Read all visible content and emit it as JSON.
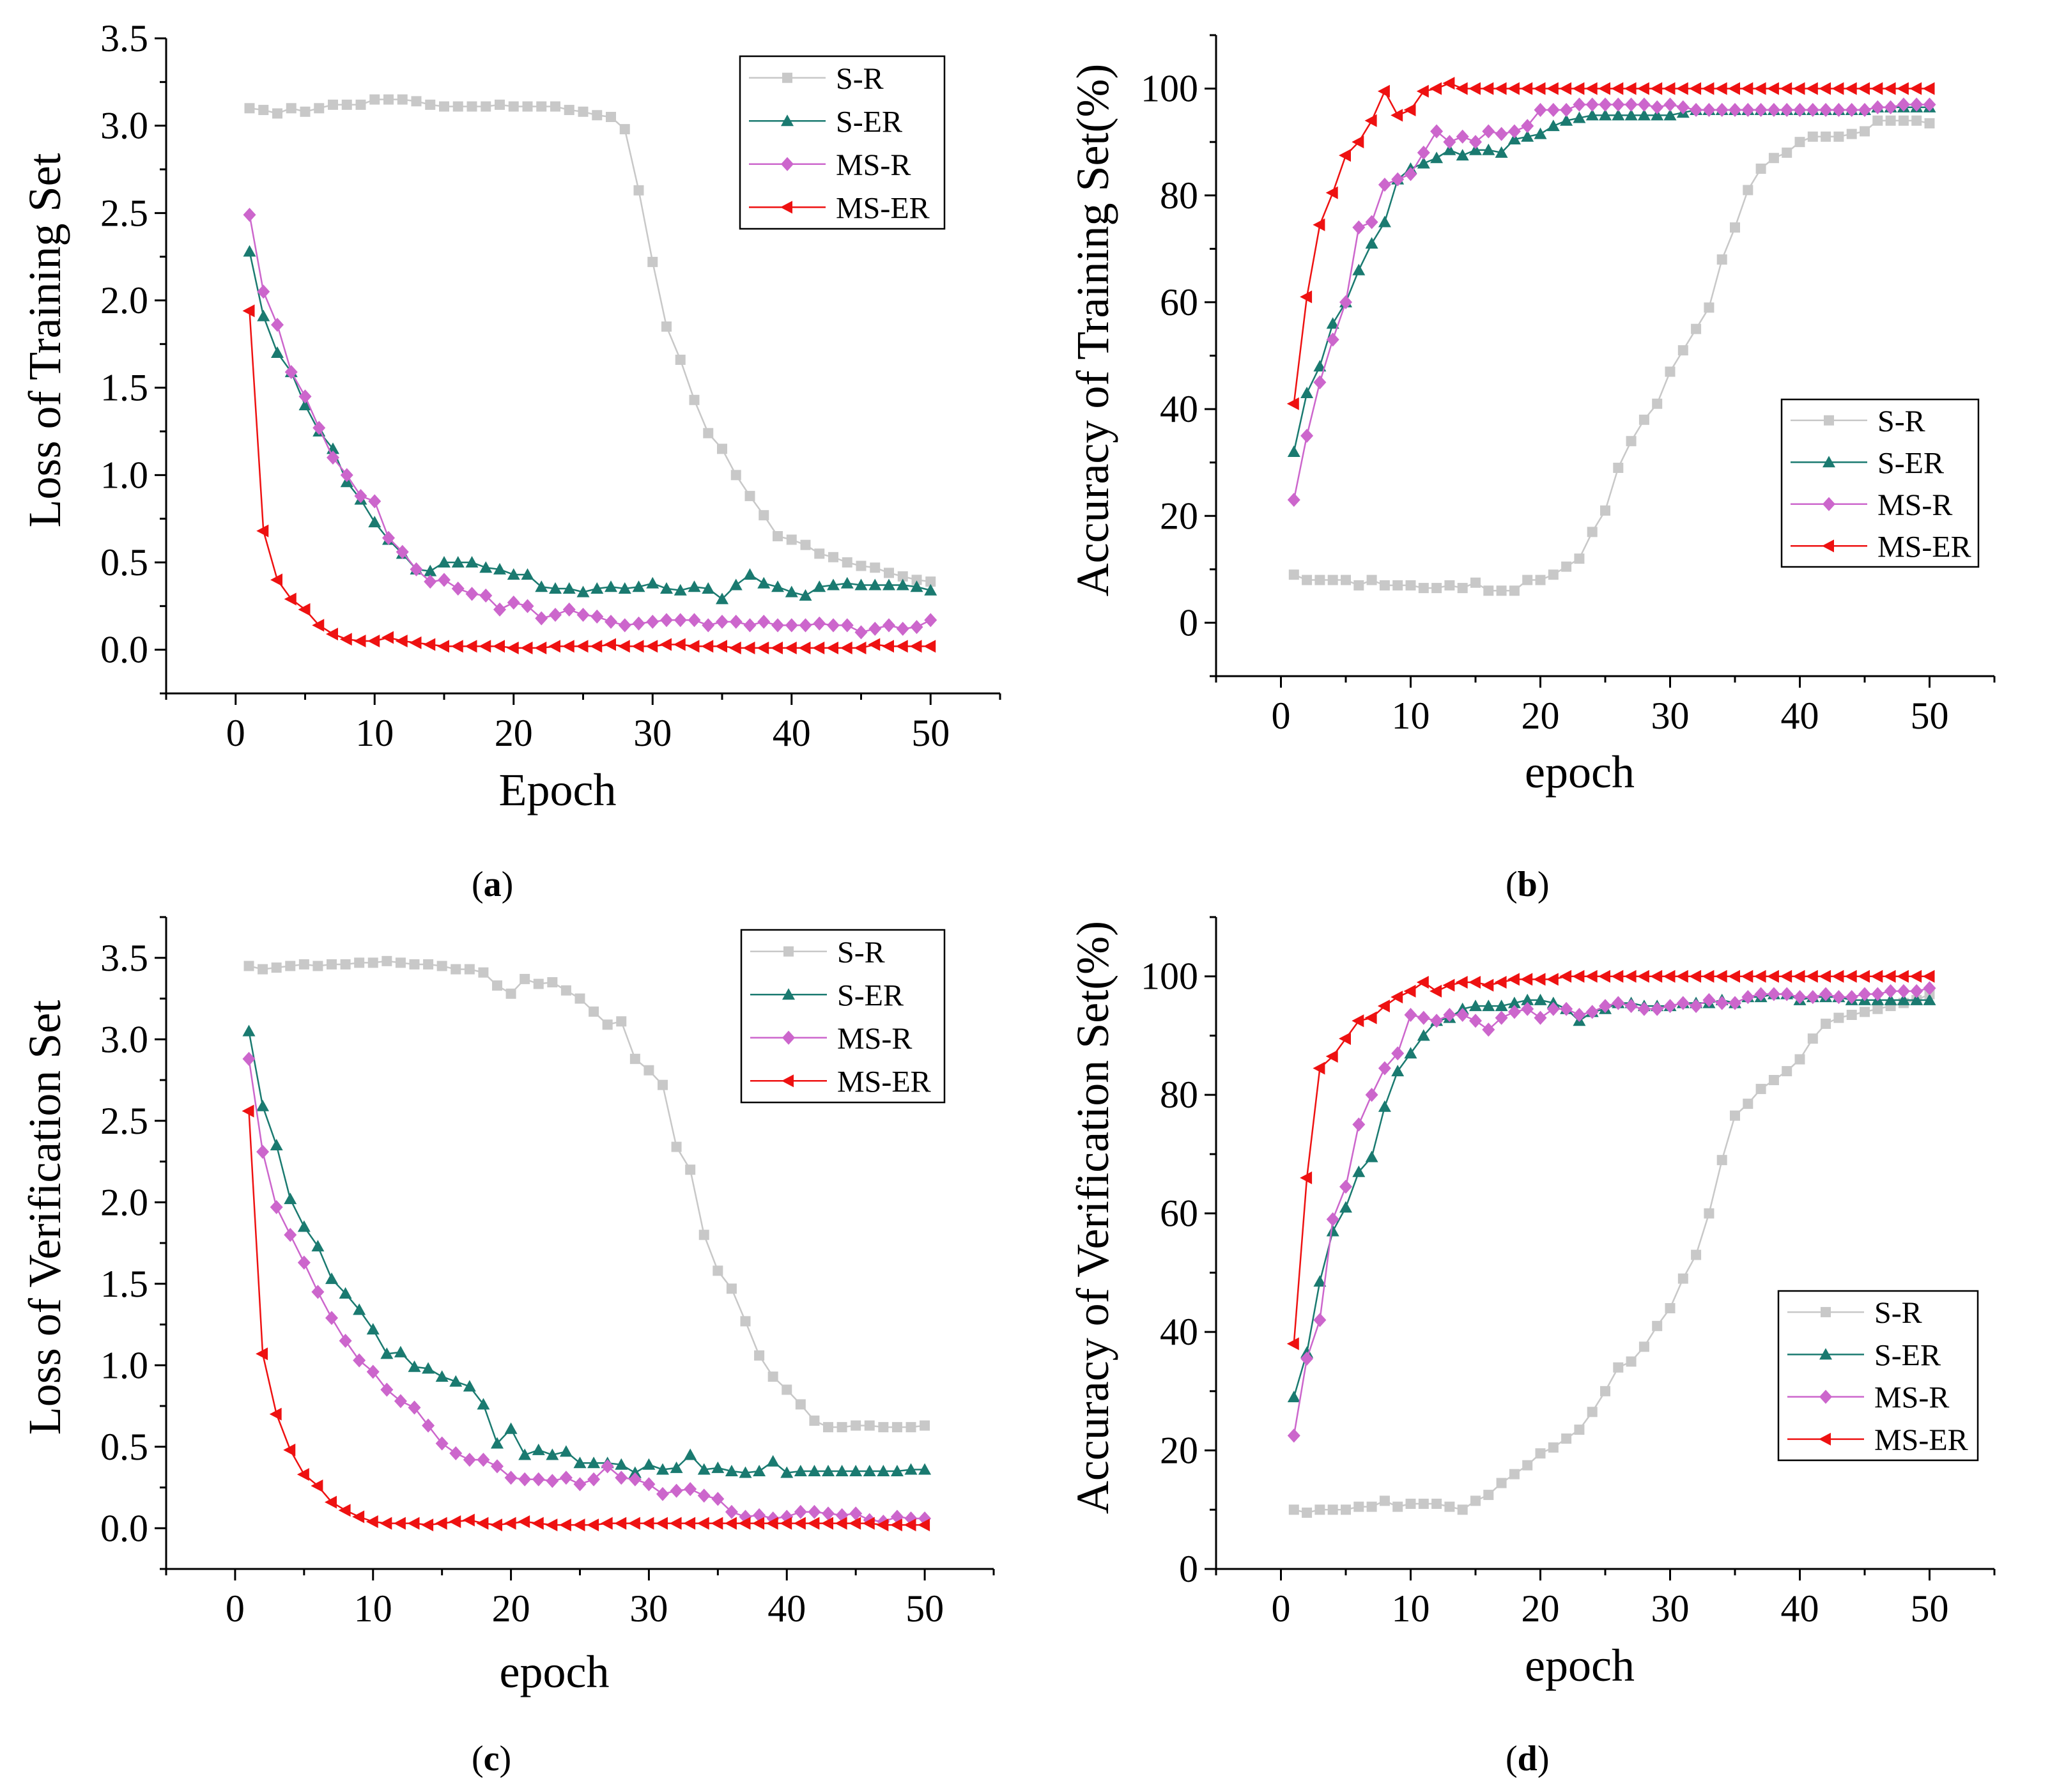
{
  "figure": {
    "captions": [
      {
        "open": "(",
        "letter": "a",
        "close": ")"
      },
      {
        "open": "(",
        "letter": "b",
        "close": ")"
      },
      {
        "open": "(",
        "letter": "c",
        "close": ")"
      },
      {
        "open": "(",
        "letter": "d",
        "close": ")"
      }
    ]
  },
  "chart_data": [
    {
      "id": "a",
      "type": "line",
      "title": "",
      "xlabel": "Epoch",
      "ylabel": "Loss of Training Set",
      "xlim": [
        -5,
        55
      ],
      "ylim": [
        -0.25,
        3.5
      ],
      "xticks": [
        0,
        10,
        20,
        30,
        40,
        50
      ],
      "yticks": [
        0.0,
        0.5,
        1.0,
        1.5,
        2.0,
        2.5,
        3.0,
        3.5
      ],
      "ytick_labels": [
        "0.0",
        "0.5",
        "1.0",
        "1.5",
        "2.0",
        "2.5",
        "3.0",
        "3.5"
      ],
      "legend": "top-right",
      "series": [
        {
          "name": "S-R",
          "color": "#c8c8c8",
          "marker": "square",
          "values": [
            3.1,
            3.09,
            3.07,
            3.1,
            3.08,
            3.1,
            3.12,
            3.12,
            3.12,
            3.15,
            3.15,
            3.15,
            3.14,
            3.12,
            3.11,
            3.11,
            3.11,
            3.11,
            3.12,
            3.11,
            3.11,
            3.11,
            3.11,
            3.09,
            3.08,
            3.06,
            3.05,
            2.98,
            2.63,
            2.22,
            1.85,
            1.66,
            1.43,
            1.24,
            1.15,
            1.0,
            0.88,
            0.77,
            0.65,
            0.63,
            0.6,
            0.55,
            0.53,
            0.5,
            0.48,
            0.47,
            0.44,
            0.42,
            0.4,
            0.39
          ]
        },
        {
          "name": "S-ER",
          "color": "#1a7a70",
          "marker": "triangle-up",
          "values": [
            2.28,
            1.91,
            1.7,
            1.59,
            1.4,
            1.25,
            1.15,
            0.96,
            0.86,
            0.73,
            0.63,
            0.55,
            0.46,
            0.45,
            0.5,
            0.5,
            0.5,
            0.47,
            0.46,
            0.43,
            0.43,
            0.36,
            0.35,
            0.35,
            0.33,
            0.35,
            0.36,
            0.35,
            0.36,
            0.38,
            0.35,
            0.34,
            0.36,
            0.35,
            0.29,
            0.37,
            0.43,
            0.38,
            0.36,
            0.33,
            0.31,
            0.36,
            0.37,
            0.38,
            0.37,
            0.37,
            0.37,
            0.37,
            0.36,
            0.34
          ]
        },
        {
          "name": "MS-R",
          "color": "#cc66cc",
          "marker": "diamond",
          "values": [
            2.49,
            2.05,
            1.86,
            1.59,
            1.45,
            1.27,
            1.1,
            1.0,
            0.88,
            0.85,
            0.64,
            0.56,
            0.46,
            0.39,
            0.4,
            0.35,
            0.32,
            0.31,
            0.23,
            0.27,
            0.25,
            0.18,
            0.2,
            0.23,
            0.2,
            0.19,
            0.16,
            0.14,
            0.15,
            0.16,
            0.17,
            0.17,
            0.17,
            0.14,
            0.16,
            0.16,
            0.14,
            0.16,
            0.14,
            0.14,
            0.14,
            0.15,
            0.14,
            0.14,
            0.1,
            0.12,
            0.14,
            0.12,
            0.13,
            0.17
          ]
        },
        {
          "name": "MS-ER",
          "color": "#ee1111",
          "marker": "triangle-left",
          "values": [
            1.94,
            0.68,
            0.4,
            0.29,
            0.23,
            0.14,
            0.09,
            0.06,
            0.05,
            0.05,
            0.07,
            0.05,
            0.04,
            0.03,
            0.02,
            0.02,
            0.02,
            0.02,
            0.02,
            0.01,
            0.01,
            0.01,
            0.02,
            0.02,
            0.02,
            0.02,
            0.03,
            0.02,
            0.02,
            0.02,
            0.03,
            0.03,
            0.02,
            0.02,
            0.02,
            0.01,
            0.01,
            0.01,
            0.01,
            0.01,
            0.01,
            0.01,
            0.01,
            0.01,
            0.01,
            0.03,
            0.02,
            0.02,
            0.02,
            0.02
          ]
        }
      ]
    },
    {
      "id": "b",
      "type": "line",
      "title": "",
      "xlabel": "epoch",
      "ylabel": "Accuracy of Training Set(%)",
      "xlim": [
        -5,
        55
      ],
      "ylim": [
        -10,
        110
      ],
      "xticks": [
        0,
        10,
        20,
        30,
        40,
        50
      ],
      "yticks": [
        0,
        20,
        40,
        60,
        80,
        100
      ],
      "ytick_labels": [
        "0",
        "20",
        "40",
        "60",
        "80",
        "100"
      ],
      "legend": "middle-right",
      "series": [
        {
          "name": "S-R",
          "color": "#c8c8c8",
          "marker": "square",
          "values": [
            9.0,
            8.0,
            8.0,
            8.0,
            8.0,
            7.0,
            8.0,
            7.0,
            7.0,
            7.0,
            6.5,
            6.5,
            7.0,
            6.5,
            7.5,
            6.0,
            6.0,
            6.0,
            8.0,
            8.0,
            9.0,
            10.5,
            12.0,
            17.0,
            21.0,
            29.0,
            34.0,
            38.0,
            41.0,
            47.0,
            51.0,
            55.0,
            59.0,
            68.0,
            74.0,
            81.0,
            85.0,
            87.0,
            88.0,
            90.0,
            91.0,
            91.0,
            91.0,
            91.5,
            92.0,
            94.0,
            94.0,
            94.0,
            94.0,
            93.5
          ]
        },
        {
          "name": "S-ER",
          "color": "#1a7a70",
          "marker": "triangle-up",
          "values": [
            32.0,
            43.0,
            48.0,
            56.0,
            60.0,
            66.0,
            71.0,
            75.0,
            83.0,
            85.0,
            86.0,
            87.0,
            88.5,
            87.5,
            88.5,
            88.5,
            88.0,
            90.5,
            91.0,
            91.5,
            93.0,
            94.0,
            94.5,
            95.0,
            95.0,
            95.0,
            95.0,
            95.0,
            95.0,
            95.0,
            95.5,
            96.0,
            96.0,
            96.0,
            96.0,
            96.0,
            96.0,
            96.0,
            96.0,
            96.0,
            96.0,
            96.0,
            96.0,
            96.0,
            96.0,
            96.5,
            96.5,
            96.5,
            96.5,
            96.5
          ]
        },
        {
          "name": "MS-R",
          "color": "#cc66cc",
          "marker": "diamond",
          "values": [
            23.0,
            35.0,
            45.0,
            53.0,
            60.0,
            74.0,
            75.0,
            82.0,
            83.0,
            84.0,
            88.0,
            92.0,
            90.0,
            91.0,
            90.0,
            92.0,
            91.5,
            92.0,
            93.0,
            96.0,
            96.0,
            96.0,
            97.0,
            97.0,
            97.0,
            97.0,
            97.0,
            97.0,
            96.5,
            97.0,
            96.5,
            96.0,
            96.0,
            96.0,
            96.0,
            96.0,
            96.0,
            96.0,
            96.0,
            96.0,
            96.0,
            96.0,
            96.0,
            96.0,
            96.0,
            96.5,
            96.5,
            97.0,
            97.0,
            97.0
          ]
        },
        {
          "name": "MS-ER",
          "color": "#ee1111",
          "marker": "triangle-left",
          "values": [
            41.0,
            61.0,
            74.5,
            80.5,
            87.5,
            90.0,
            94.0,
            99.5,
            95.0,
            96.0,
            99.5,
            100.0,
            101.0,
            100.0,
            100.0,
            100.0,
            100.0,
            100.0,
            100.0,
            100.0,
            100.0,
            100.0,
            100.0,
            100.0,
            100.0,
            100.0,
            100.0,
            100.0,
            100.0,
            100.0,
            100.0,
            100.0,
            100.0,
            100.0,
            100.0,
            100.0,
            100.0,
            100.0,
            100.0,
            100.0,
            100.0,
            100.0,
            100.0,
            100.0,
            100.0,
            100.0,
            100.0,
            100.0,
            100.0,
            100.0
          ]
        }
      ]
    },
    {
      "id": "c",
      "type": "line",
      "title": "",
      "xlabel": "epoch",
      "ylabel": "Loss of Verification Set",
      "xlim": [
        -5,
        55
      ],
      "ylim": [
        -0.25,
        3.75
      ],
      "xticks": [
        0,
        10,
        20,
        30,
        40,
        50
      ],
      "yticks": [
        0.0,
        0.5,
        1.0,
        1.5,
        2.0,
        2.5,
        3.0,
        3.5
      ],
      "ytick_labels": [
        "0.0",
        "0.5",
        "1.0",
        "1.5",
        "2.0",
        "2.5",
        "3.0",
        "3.5"
      ],
      "legend": "top-right",
      "series": [
        {
          "name": "S-R",
          "color": "#c8c8c8",
          "marker": "square",
          "values": [
            3.45,
            3.43,
            3.44,
            3.45,
            3.46,
            3.45,
            3.46,
            3.46,
            3.47,
            3.47,
            3.48,
            3.47,
            3.46,
            3.46,
            3.45,
            3.43,
            3.43,
            3.41,
            3.33,
            3.28,
            3.37,
            3.34,
            3.35,
            3.3,
            3.25,
            3.17,
            3.09,
            3.11,
            2.88,
            2.81,
            2.72,
            2.34,
            2.2,
            1.8,
            1.58,
            1.47,
            1.27,
            1.06,
            0.93,
            0.85,
            0.76,
            0.66,
            0.62,
            0.62,
            0.63,
            0.63,
            0.62,
            0.62,
            0.62,
            0.63
          ]
        },
        {
          "name": "S-ER",
          "color": "#1a7a70",
          "marker": "triangle-up",
          "values": [
            3.05,
            2.59,
            2.35,
            2.02,
            1.85,
            1.73,
            1.53,
            1.44,
            1.34,
            1.22,
            1.07,
            1.08,
            0.99,
            0.98,
            0.93,
            0.9,
            0.87,
            0.76,
            0.52,
            0.61,
            0.45,
            0.48,
            0.45,
            0.47,
            0.4,
            0.4,
            0.4,
            0.39,
            0.34,
            0.39,
            0.36,
            0.37,
            0.45,
            0.36,
            0.37,
            0.35,
            0.34,
            0.35,
            0.41,
            0.34,
            0.35,
            0.35,
            0.35,
            0.35,
            0.35,
            0.35,
            0.35,
            0.35,
            0.36,
            0.36
          ]
        },
        {
          "name": "MS-R",
          "color": "#cc66cc",
          "marker": "diamond",
          "values": [
            2.88,
            2.31,
            1.97,
            1.8,
            1.63,
            1.45,
            1.29,
            1.15,
            1.03,
            0.96,
            0.85,
            0.78,
            0.74,
            0.63,
            0.52,
            0.46,
            0.42,
            0.42,
            0.38,
            0.31,
            0.3,
            0.3,
            0.29,
            0.31,
            0.27,
            0.3,
            0.38,
            0.31,
            0.3,
            0.27,
            0.21,
            0.23,
            0.24,
            0.2,
            0.18,
            0.1,
            0.07,
            0.08,
            0.06,
            0.07,
            0.1,
            0.1,
            0.09,
            0.08,
            0.09,
            0.05,
            0.04,
            0.07,
            0.06,
            0.06
          ]
        },
        {
          "name": "MS-ER",
          "color": "#ee1111",
          "marker": "triangle-left",
          "values": [
            2.56,
            1.07,
            0.7,
            0.48,
            0.33,
            0.26,
            0.16,
            0.11,
            0.07,
            0.04,
            0.03,
            0.03,
            0.03,
            0.02,
            0.03,
            0.04,
            0.05,
            0.03,
            0.02,
            0.03,
            0.04,
            0.03,
            0.02,
            0.02,
            0.02,
            0.02,
            0.03,
            0.03,
            0.03,
            0.03,
            0.03,
            0.03,
            0.03,
            0.03,
            0.03,
            0.03,
            0.03,
            0.03,
            0.03,
            0.03,
            0.03,
            0.03,
            0.03,
            0.03,
            0.03,
            0.03,
            0.02,
            0.02,
            0.02,
            0.02
          ]
        }
      ]
    },
    {
      "id": "d",
      "type": "line",
      "title": "",
      "xlabel": "epoch",
      "ylabel": "Accuracy of Verification Set(%)",
      "xlim": [
        -5,
        55
      ],
      "ylim": [
        0,
        110
      ],
      "xticks": [
        0,
        10,
        20,
        30,
        40,
        50
      ],
      "yticks": [
        0,
        20,
        40,
        60,
        80,
        100
      ],
      "ytick_labels": [
        "0",
        "20",
        "40",
        "60",
        "80",
        "100"
      ],
      "legend": "lower-right",
      "series": [
        {
          "name": "S-R",
          "color": "#c8c8c8",
          "marker": "square",
          "values": [
            10.0,
            9.5,
            10.0,
            10.0,
            10.0,
            10.5,
            10.5,
            11.5,
            10.5,
            11.0,
            11.0,
            11.0,
            10.5,
            10.0,
            11.5,
            12.5,
            14.5,
            16.0,
            17.5,
            19.5,
            20.5,
            22.0,
            23.5,
            26.5,
            30.0,
            34.0,
            35.0,
            37.5,
            41.0,
            44.0,
            49.0,
            53.0,
            60.0,
            69.0,
            76.5,
            78.5,
            81.0,
            82.5,
            84.0,
            86.0,
            89.5,
            92.0,
            93.0,
            93.5,
            94.0,
            94.5,
            95.0,
            95.5,
            96.0,
            97.0
          ]
        },
        {
          "name": "S-ER",
          "color": "#1a7a70",
          "marker": "triangle-up",
          "values": [
            29.0,
            36.5,
            48.5,
            57.0,
            61.0,
            67.0,
            69.5,
            78.0,
            84.0,
            87.0,
            90.0,
            92.5,
            93.0,
            94.5,
            95.0,
            95.0,
            95.0,
            95.5,
            96.0,
            96.0,
            95.5,
            94.5,
            92.5,
            94.0,
            94.5,
            95.5,
            95.5,
            95.0,
            95.0,
            95.0,
            95.5,
            95.5,
            95.5,
            96.0,
            95.5,
            96.5,
            96.5,
            97.0,
            97.0,
            96.0,
            96.5,
            96.5,
            96.5,
            96.0,
            96.0,
            96.0,
            96.0,
            96.0,
            96.0,
            96.0
          ]
        },
        {
          "name": "MS-R",
          "color": "#cc66cc",
          "marker": "diamond",
          "values": [
            22.5,
            35.5,
            42.0,
            59.0,
            64.5,
            75.0,
            80.0,
            84.5,
            87.0,
            93.5,
            93.0,
            92.5,
            93.5,
            93.5,
            92.5,
            91.0,
            93.0,
            94.0,
            94.5,
            93.0,
            94.5,
            94.5,
            93.5,
            94.0,
            95.0,
            95.5,
            95.0,
            94.5,
            94.5,
            95.0,
            95.5,
            95.0,
            96.0,
            95.5,
            95.5,
            96.5,
            97.0,
            97.0,
            97.0,
            96.5,
            96.5,
            97.0,
            96.5,
            96.5,
            97.0,
            97.0,
            97.5,
            97.5,
            97.5,
            98.0
          ]
        },
        {
          "name": "MS-ER",
          "color": "#ee1111",
          "marker": "triangle-left",
          "values": [
            38.0,
            66.0,
            84.5,
            86.5,
            89.5,
            92.5,
            93.0,
            95.0,
            96.5,
            97.5,
            99.0,
            97.5,
            98.5,
            99.0,
            99.0,
            98.5,
            99.0,
            99.5,
            99.5,
            99.5,
            99.5,
            100.0,
            100.0,
            100.0,
            100.0,
            100.0,
            100.0,
            100.0,
            100.0,
            100.0,
            100.0,
            100.0,
            100.0,
            100.0,
            100.0,
            100.0,
            100.0,
            100.0,
            100.0,
            100.0,
            100.0,
            100.0,
            100.0,
            100.0,
            100.0,
            100.0,
            100.0,
            100.0,
            100.0,
            100.0
          ]
        }
      ]
    }
  ]
}
